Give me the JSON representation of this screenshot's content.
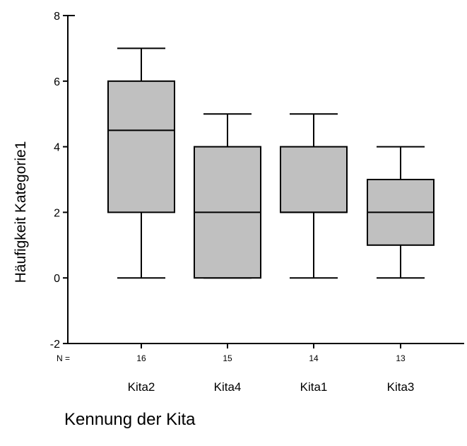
{
  "chart_data": {
    "type": "boxplot",
    "xlabel": "Kennung der Kita",
    "ylabel": "Häufigkeit Kategorie1",
    "ylim": [
      -2,
      8
    ],
    "yticks": [
      "-2",
      "0",
      "2",
      "4",
      "6",
      "8"
    ],
    "n_prefix": "N =",
    "categories": [
      "Kita2",
      "Kita4",
      "Kita1",
      "Kita3"
    ],
    "n": [
      "16",
      "15",
      "14",
      "13"
    ],
    "boxes": [
      {
        "min": 0,
        "q1": 2,
        "median": 4.5,
        "q3": 6,
        "max": 7
      },
      {
        "min": 0,
        "q1": 0,
        "median": 2,
        "q3": 4,
        "max": 5
      },
      {
        "min": 0,
        "q1": 2,
        "median": 2,
        "q3": 4,
        "max": 5
      },
      {
        "min": 0,
        "q1": 1,
        "median": 2,
        "q3": 3,
        "max": 4
      }
    ],
    "box_fill": "#c0c0c0",
    "grid": false,
    "legend": "none"
  }
}
